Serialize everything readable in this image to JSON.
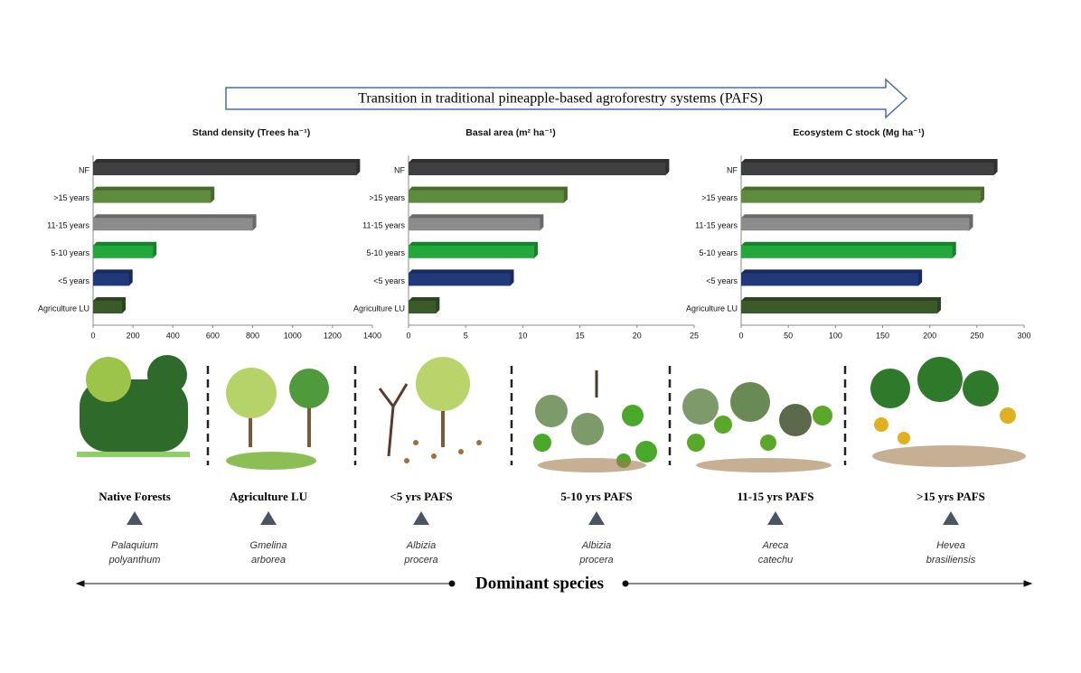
{
  "header": {
    "title": "Transition in traditional pineapple-based agroforestry systems (PAFS)"
  },
  "chart_data": [
    {
      "type": "bar",
      "orientation": "horizontal",
      "title": "Stand density (Trees ha⁻¹)",
      "categories": [
        "NF",
        ">15 years",
        "11-15 years",
        "5-10 years",
        "<5 years",
        "Agriculture LU"
      ],
      "values": [
        1320,
        590,
        800,
        300,
        180,
        145
      ],
      "colors": [
        "#404040",
        "#5e8c3c",
        "#8c8c8c",
        "#23a83c",
        "#20397a",
        "#3b5a2a"
      ],
      "xlim": [
        0,
        1400
      ],
      "xticks": [
        0,
        200,
        400,
        600,
        800,
        1000,
        1200,
        1400
      ]
    },
    {
      "type": "bar",
      "orientation": "horizontal",
      "title": "Basal area (m² ha⁻¹)",
      "categories": [
        "NF",
        ">15 years",
        "11-15 years",
        "5-10 years",
        "<5 years",
        "Agriculture LU"
      ],
      "values": [
        22.5,
        13.6,
        11.5,
        11.0,
        8.9,
        2.4
      ],
      "colors": [
        "#404040",
        "#5e8c3c",
        "#8c8c8c",
        "#23a83c",
        "#20397a",
        "#3b5a2a"
      ],
      "xlim": [
        0,
        25
      ],
      "xticks": [
        0,
        5,
        10,
        15,
        20,
        25
      ]
    },
    {
      "type": "bar",
      "orientation": "horizontal",
      "title": "Ecosystem C stock (Mg ha⁻¹)",
      "categories": [
        "NF",
        ">15 years",
        "11-15 years",
        "5-10 years",
        "<5 years",
        "Agriculture LU"
      ],
      "values": [
        268,
        254,
        242,
        224,
        188,
        208
      ],
      "colors": [
        "#404040",
        "#5e8c3c",
        "#8c8c8c",
        "#23a83c",
        "#20397a",
        "#3b5a2a"
      ],
      "xlim": [
        0,
        300
      ],
      "xticks": [
        0,
        50,
        100,
        150,
        200,
        250,
        300
      ]
    }
  ],
  "stages": [
    {
      "label": "Native Forests",
      "species": [
        "Palaquium",
        "polyanthum"
      ]
    },
    {
      "label": "Agriculture  LU",
      "species": [
        "Gmelina",
        "arborea"
      ]
    },
    {
      "label": "<5 yrs PAFS",
      "species": [
        "Albizia",
        "procera"
      ]
    },
    {
      "label": "5-10 yrs PAFS",
      "species": [
        "Albizia",
        "procera"
      ]
    },
    {
      "label": "11-15 yrs PAFS",
      "species": [
        "Areca",
        "catechu"
      ]
    },
    {
      "label": ">15 yrs PAFS",
      "species": [
        "Hevea",
        "brasiliensis"
      ]
    }
  ],
  "footer": {
    "label": "Dominant species"
  }
}
